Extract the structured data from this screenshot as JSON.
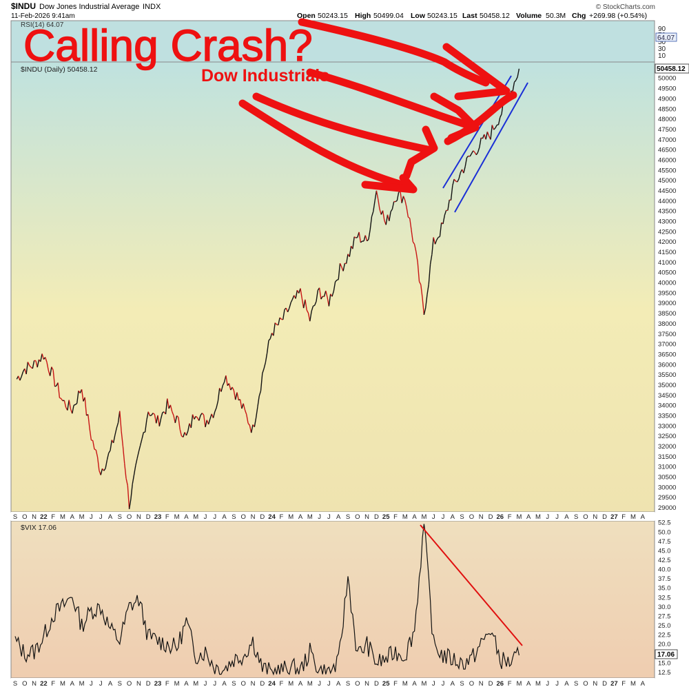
{
  "header": {
    "symbol": "$INDU",
    "name": "Dow Jones Industrial Average",
    "exchange": "INDX",
    "datetime": "11-Feb-2026 9:41am",
    "open_label": "Open",
    "open": "50243.15",
    "high_label": "High",
    "high": "50499.04",
    "low_label": "Low",
    "low": "50243.15",
    "last_label": "Last",
    "last": "50458.12",
    "volume_label": "Volume",
    "volume": "50.3M",
    "chg_label": "Chg",
    "chg": "+269.98 (+0.54%)",
    "brand": "© StockCharts.com"
  },
  "annotations": {
    "headline": "Calling Crash?",
    "subheadline": "Dow Industrials"
  },
  "rsi_panel": {
    "label": "RSI(14) 64.07",
    "ticks": [
      "90",
      "70",
      "50",
      "30",
      "10"
    ],
    "current_label": "64.07"
  },
  "price_panel": {
    "legend": "$INDU (Daily) 50458.12",
    "current_label": "50458.12",
    "axis_ticks": [
      "50000",
      "49500",
      "49000",
      "48500",
      "48000",
      "47500",
      "47000",
      "46500",
      "46000",
      "45500",
      "45000",
      "44500",
      "44000",
      "43500",
      "43000",
      "42500",
      "42000",
      "41500",
      "41000",
      "40500",
      "40000",
      "39500",
      "39000",
      "38500",
      "38000",
      "37500",
      "37000",
      "36500",
      "36000",
      "35500",
      "35000",
      "34500",
      "34000",
      "33500",
      "33000",
      "32500",
      "32000",
      "31500",
      "31000",
      "30500",
      "30000",
      "29500",
      "29000"
    ]
  },
  "vix_panel": {
    "legend": "$VIX 17.06",
    "current_label": "17.06",
    "axis_ticks": [
      "52.5",
      "50.0",
      "47.5",
      "45.0",
      "42.5",
      "40.0",
      "37.5",
      "35.0",
      "32.5",
      "30.0",
      "27.5",
      "25.0",
      "22.5",
      "20.0",
      "15.0",
      "12.5"
    ]
  },
  "x_axis_labels": [
    "S",
    "O",
    "N",
    "22",
    "F",
    "M",
    "A",
    "M",
    "J",
    "J",
    "A",
    "S",
    "O",
    "N",
    "D",
    "23",
    "F",
    "M",
    "A",
    "M",
    "J",
    "J",
    "A",
    "S",
    "O",
    "N",
    "D",
    "24",
    "F",
    "M",
    "A",
    "M",
    "J",
    "J",
    "A",
    "S",
    "O",
    "N",
    "D",
    "25",
    "F",
    "M",
    "A",
    "M",
    "J",
    "J",
    "A",
    "S",
    "O",
    "N",
    "D",
    "26",
    "F",
    "M",
    "A",
    "M",
    "J",
    "J",
    "A",
    "S",
    "O",
    "N",
    "D",
    "27",
    "F",
    "M",
    "A"
  ],
  "colors": {
    "annotation_red": "#ee1111",
    "channel_blue": "#1a2fd6",
    "price_up": "#111111",
    "price_down": "#c81414",
    "vix_line": "#111111",
    "vix_trend": "#e01010"
  },
  "chart_data": [
    {
      "type": "line",
      "title": "$INDU Dow Jones Industrial Average",
      "series_name": "$INDU (Daily)",
      "ylim": [
        28800,
        50800
      ],
      "x": [
        "2021-09",
        "2021-10",
        "2021-11",
        "2021-12",
        "2022-01",
        "2022-02",
        "2022-03",
        "2022-04",
        "2022-05",
        "2022-06",
        "2022-07",
        "2022-08",
        "2022-09",
        "2022-10",
        "2022-11",
        "2022-12",
        "2023-01",
        "2023-02",
        "2023-03",
        "2023-04",
        "2023-05",
        "2023-06",
        "2023-07",
        "2023-08",
        "2023-09",
        "2023-10",
        "2023-11",
        "2023-12",
        "2024-01",
        "2024-02",
        "2024-03",
        "2024-04",
        "2024-05",
        "2024-06",
        "2024-07",
        "2024-08",
        "2024-09",
        "2024-10",
        "2024-11",
        "2024-12",
        "2025-01",
        "2025-02",
        "2025-03",
        "2025-04",
        "2025-05",
        "2025-06",
        "2025-07",
        "2025-08",
        "2025-09",
        "2025-10",
        "2025-11",
        "2025-12",
        "2026-01",
        "2026-02"
      ],
      "values": [
        35200,
        35800,
        36000,
        36500,
        35400,
        34200,
        33800,
        34900,
        32500,
        30800,
        31700,
        33500,
        29200,
        31500,
        33800,
        33200,
        34000,
        33300,
        32400,
        33800,
        33200,
        33800,
        35500,
        34800,
        33800,
        32800,
        35500,
        37600,
        38100,
        38900,
        39500,
        38200,
        39600,
        39100,
        40500,
        41300,
        42300,
        42000,
        44500,
        42800,
        44300,
        44200,
        41800,
        38500,
        41900,
        42800,
        44600,
        45500,
        46300,
        46800,
        47300,
        48200,
        49200,
        50458
      ]
    },
    {
      "type": "line",
      "title": "RSI(14)",
      "ylim": [
        0,
        100
      ],
      "values": [
        64.07
      ]
    },
    {
      "type": "line",
      "title": "$VIX",
      "ylim": [
        11,
        53
      ],
      "x": [
        "2021-09",
        "2021-10",
        "2021-11",
        "2021-12",
        "2022-01",
        "2022-02",
        "2022-03",
        "2022-04",
        "2022-05",
        "2022-06",
        "2022-07",
        "2022-08",
        "2022-09",
        "2022-10",
        "2022-11",
        "2022-12",
        "2023-01",
        "2023-02",
        "2023-03",
        "2023-04",
        "2023-05",
        "2023-06",
        "2023-07",
        "2023-08",
        "2023-09",
        "2023-10",
        "2023-11",
        "2023-12",
        "2024-01",
        "2024-02",
        "2024-03",
        "2024-04",
        "2024-05",
        "2024-06",
        "2024-07",
        "2024-08",
        "2024-09",
        "2024-10",
        "2024-11",
        "2024-12",
        "2025-01",
        "2025-02",
        "2025-03",
        "2025-04",
        "2025-05",
        "2025-06",
        "2025-07",
        "2025-08",
        "2025-09",
        "2025-10",
        "2025-11",
        "2025-12",
        "2026-01",
        "2026-02"
      ],
      "values": [
        21,
        17.5,
        18,
        22,
        28,
        30,
        33,
        25,
        29,
        30,
        24,
        21,
        30,
        32,
        22,
        21,
        20,
        19,
        26,
        17,
        18,
        14,
        13.5,
        16,
        17,
        21,
        13.5,
        12.5,
        13,
        14,
        13,
        18,
        13,
        12.5,
        15,
        38,
        17,
        20,
        15,
        16,
        18,
        17,
        24,
        52,
        20,
        17,
        16,
        15,
        16,
        20,
        24,
        16,
        15,
        17.06
      ]
    }
  ]
}
